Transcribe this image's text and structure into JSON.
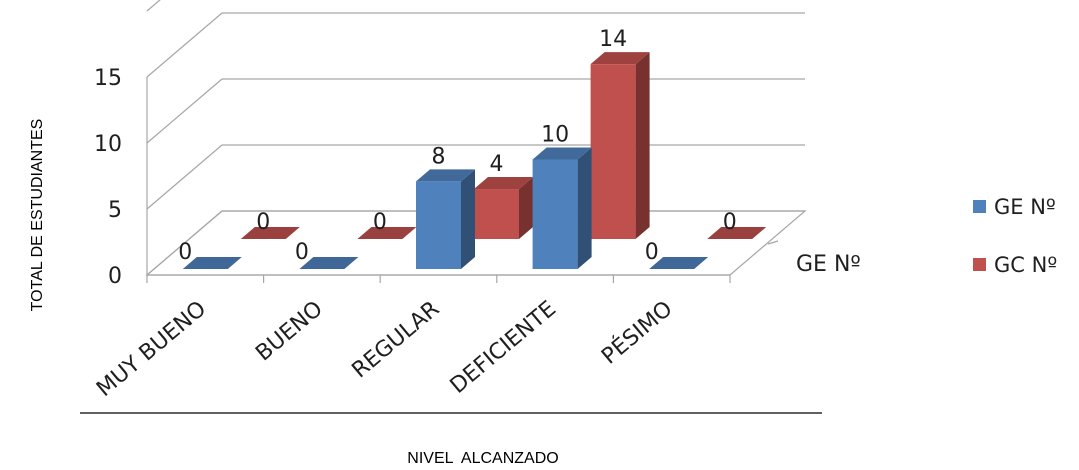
{
  "chart_data": {
    "type": "bar",
    "categories": [
      "MUY BUENO",
      "BUENO",
      "REGULAR",
      "DEFICIENTE",
      "PÉSIMO"
    ],
    "series": [
      {
        "name": "GE Nº",
        "values": [
          0,
          0,
          8,
          10,
          0
        ],
        "color": "#4f81bd"
      },
      {
        "name": "GC Nº",
        "values": [
          0,
          0,
          4,
          14,
          0
        ],
        "color": "#c0504d"
      }
    ],
    "data_labels": {
      "GE Nº": [
        "0",
        "0",
        "8",
        "10",
        "0"
      ],
      "GC Nº": [
        "0",
        "0",
        "4",
        "14",
        "0"
      ]
    },
    "y_ticks": [
      "0",
      "5",
      "10",
      "15"
    ],
    "ylim": [
      0,
      20
    ],
    "ylabel": "TOTAL DE ESTUDIANTES",
    "xlabel": "NIVEL  ALCANZADO",
    "depth_label": "GE Nº",
    "legend_position": "right",
    "style": "3d-clustered",
    "grid": true
  }
}
